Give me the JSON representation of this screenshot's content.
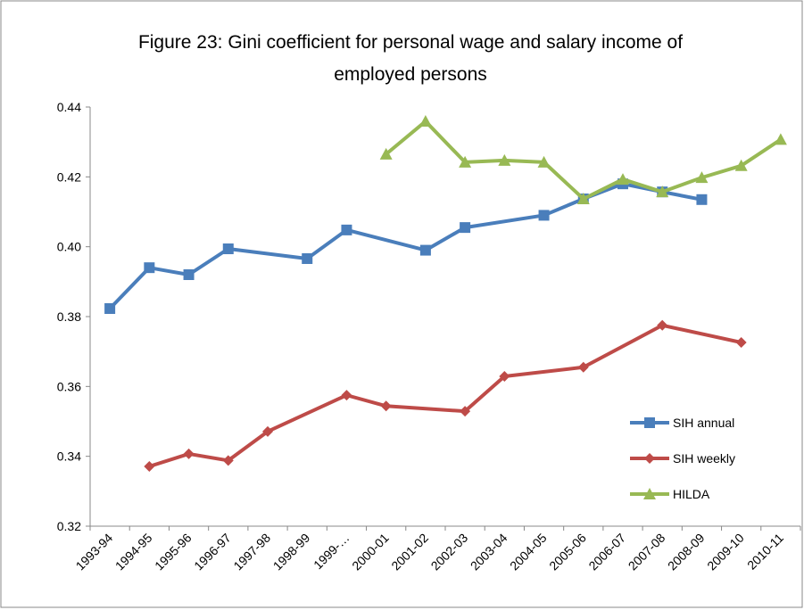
{
  "chart_data": {
    "type": "line",
    "title": "Figure 23: Gini coefficient for personal wage and salary income of employed persons",
    "categories": [
      "1993-94",
      "1994-95",
      "1995-96",
      "1996-97",
      "1997-98",
      "1998-99",
      "1999-…",
      "2000-01",
      "2001-02",
      "2002-03",
      "2003-04",
      "2004-05",
      "2005-06",
      "2006-07",
      "2007-08",
      "2008-09",
      "2009-10",
      "2010-11"
    ],
    "series": [
      {
        "name": "SIH annual",
        "color": "#4a7ebb",
        "marker": "square",
        "values": [
          0.3823,
          0.394,
          0.392,
          0.3994,
          null,
          0.3966,
          0.4048,
          null,
          0.399,
          0.4055,
          null,
          0.409,
          0.4137,
          0.418,
          0.4157,
          0.4135,
          null,
          null
        ]
      },
      {
        "name": "SIH weekly",
        "color": "#be4b48",
        "marker": "diamond",
        "values": [
          null,
          0.3371,
          0.3407,
          0.3388,
          0.3471,
          null,
          0.3575,
          0.3544,
          null,
          0.3529,
          0.3629,
          null,
          0.3655,
          null,
          0.3775,
          null,
          0.3726,
          null
        ]
      },
      {
        "name": "HILDA",
        "color": "#98b954",
        "marker": "triangle",
        "values": [
          null,
          null,
          null,
          null,
          null,
          null,
          null,
          0.4265,
          0.4359,
          0.4242,
          0.4247,
          0.4242,
          0.4137,
          0.4193,
          0.4157,
          0.4198,
          0.4232,
          0.4307
        ]
      }
    ],
    "ylim": [
      0.32,
      0.44
    ],
    "yticks": [
      {
        "value": 0.32,
        "label": "0.32"
      },
      {
        "value": 0.34,
        "label": "0.34"
      },
      {
        "value": 0.36,
        "label": "0.36"
      },
      {
        "value": 0.38,
        "label": "0.38"
      },
      {
        "value": 0.4,
        "label": "0.40"
      },
      {
        "value": 0.42,
        "label": "0.42"
      },
      {
        "value": 0.44,
        "label": "0.44"
      }
    ],
    "legend": "lower right"
  }
}
